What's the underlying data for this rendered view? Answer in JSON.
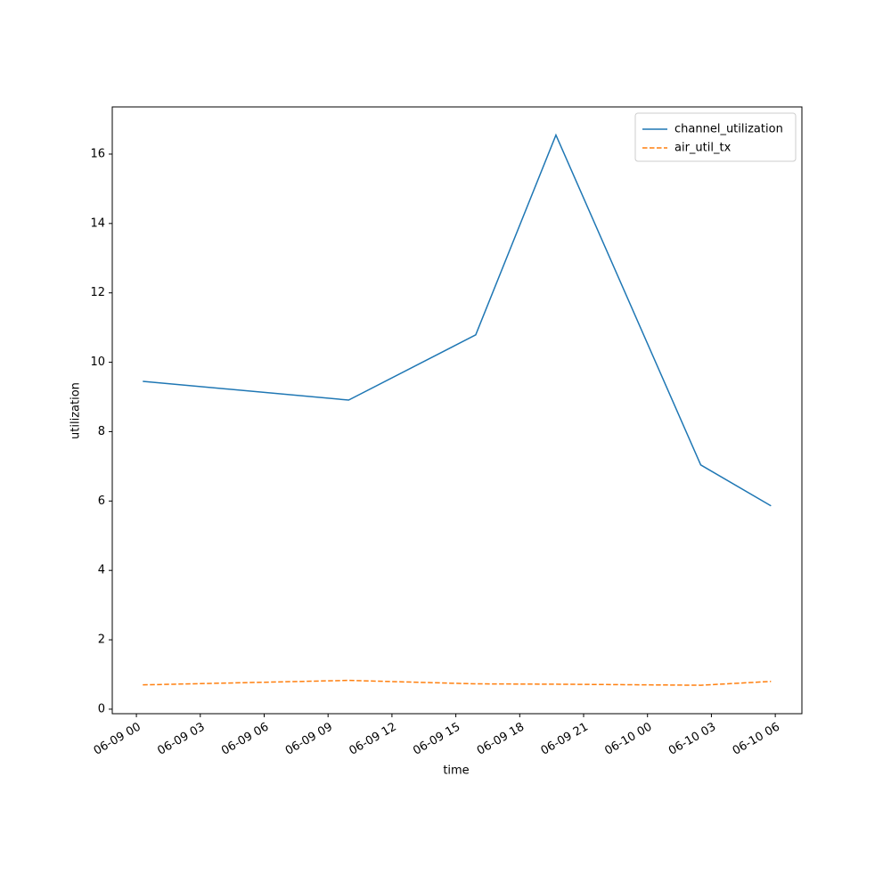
{
  "chart_data": {
    "type": "line",
    "xlabel": "time",
    "ylabel": "utilization",
    "x": [
      "06-09 00:18",
      "06-09 09:58",
      "06-09 15:56",
      "06-09 19:42",
      "06-10 02:30",
      "06-10 05:48"
    ],
    "series": [
      {
        "name": "channel_utilization",
        "color": "#1f77b4",
        "linestyle": "solid",
        "values": [
          9.45,
          8.91,
          10.79,
          16.55,
          7.04,
          5.86
        ]
      },
      {
        "name": "air_util_tx",
        "color": "#ff7f0e",
        "linestyle": "dashed",
        "values": [
          0.7,
          0.83,
          0.73,
          0.72,
          0.69,
          0.8
        ]
      }
    ],
    "xlim": [
      "06-08 22:52",
      "06-10 07:15"
    ],
    "xticks": [
      "06-09 00",
      "06-09 03",
      "06-09 06",
      "06-09 09",
      "06-09 12",
      "06-09 15",
      "06-09 18",
      "06-09 21",
      "06-10 00",
      "06-10 03",
      "06-10 06"
    ],
    "ylim": [
      -0.13,
      17.36
    ],
    "yticks": [
      0,
      2,
      4,
      6,
      8,
      10,
      12,
      14,
      16
    ],
    "grid": false,
    "legend": "upper right"
  }
}
